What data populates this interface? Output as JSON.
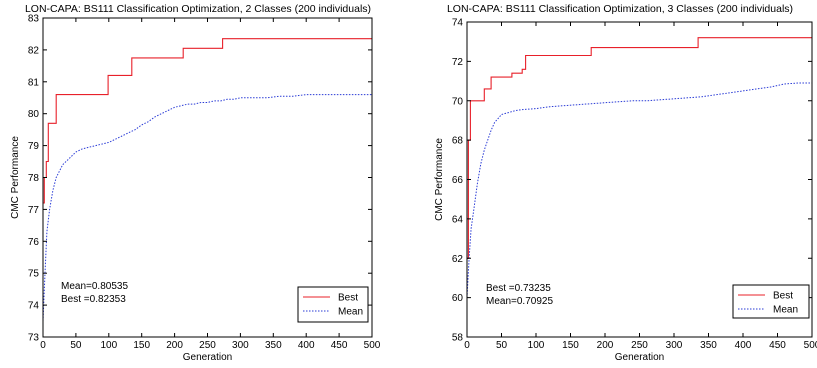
{
  "chart_data": [
    {
      "type": "line",
      "title": "LON-CAPA: BS111 Classification Optimization, 2 Classes (200 individuals)",
      "xlabel": "Generation",
      "ylabel": "CMC Performance",
      "xlim": [
        0,
        500
      ],
      "ylim": [
        73,
        83
      ],
      "xticks": [
        0,
        50,
        100,
        150,
        200,
        250,
        300,
        350,
        400,
        450,
        500
      ],
      "yticks": [
        73,
        74,
        75,
        76,
        77,
        78,
        79,
        80,
        81,
        82,
        83
      ],
      "grid": false,
      "legend_position": "bottom-right",
      "annotation_lines": [
        "Mean=0.80535",
        "Best =0.82353"
      ],
      "series": [
        {
          "name": "Best",
          "style": "solid",
          "color": "#e8202a",
          "step": true,
          "x": [
            0,
            2,
            5,
            8,
            11,
            20,
            96,
            99,
            132,
            135,
            210,
            213,
            270,
            273,
            500
          ],
          "y": [
            77.2,
            78.0,
            78.5,
            79.7,
            79.7,
            80.6,
            80.6,
            81.2,
            81.2,
            81.75,
            81.75,
            82.05,
            82.05,
            82.35,
            82.35
          ]
        },
        {
          "name": "Mean",
          "style": "dotted",
          "color": "#2a3bd6",
          "step": false,
          "x": [
            0,
            3,
            6,
            10,
            15,
            20,
            30,
            40,
            50,
            60,
            70,
            80,
            90,
            100,
            110,
            120,
            130,
            140,
            150,
            160,
            170,
            180,
            190,
            200,
            210,
            220,
            230,
            240,
            250,
            260,
            270,
            280,
            290,
            300,
            320,
            340,
            360,
            380,
            400,
            420,
            440,
            460,
            480,
            500
          ],
          "y": [
            73.5,
            75.0,
            76.3,
            77.0,
            77.6,
            78.0,
            78.4,
            78.6,
            78.8,
            78.9,
            78.95,
            79.0,
            79.05,
            79.1,
            79.2,
            79.3,
            79.4,
            79.5,
            79.65,
            79.75,
            79.9,
            80.0,
            80.1,
            80.2,
            80.25,
            80.3,
            80.3,
            80.35,
            80.35,
            80.4,
            80.4,
            80.45,
            80.45,
            80.5,
            80.5,
            80.5,
            80.55,
            80.55,
            80.6,
            80.6,
            80.6,
            80.6,
            80.6,
            80.6
          ]
        }
      ]
    },
    {
      "type": "line",
      "title": "LON-CAPA: BS111 Classification Optimization, 3 Classes (200 individuals)",
      "xlabel": "Generation",
      "ylabel": "CMC Performance",
      "xlim": [
        0,
        500
      ],
      "ylim": [
        58,
        74
      ],
      "xticks": [
        0,
        50,
        100,
        150,
        200,
        250,
        300,
        350,
        400,
        450,
        500
      ],
      "yticks": [
        58,
        60,
        62,
        64,
        66,
        68,
        70,
        72,
        74
      ],
      "grid": false,
      "legend_position": "bottom-right",
      "annotation_lines": [
        "Best =0.73235",
        "Mean=0.70925"
      ],
      "series": [
        {
          "name": "Best",
          "style": "solid",
          "color": "#e8202a",
          "step": true,
          "x": [
            0,
            2,
            5,
            20,
            25,
            30,
            35,
            60,
            65,
            70,
            80,
            85,
            175,
            180,
            330,
            335,
            500
          ],
          "y": [
            62,
            68,
            70,
            70,
            70.6,
            70.6,
            71.2,
            71.2,
            71.4,
            71.4,
            71.6,
            72.3,
            72.3,
            72.7,
            72.7,
            73.2,
            73.2
          ]
        },
        {
          "name": "Mean",
          "style": "dotted",
          "color": "#2a3bd6",
          "step": false,
          "x": [
            0,
            3,
            6,
            10,
            15,
            20,
            25,
            30,
            35,
            40,
            45,
            50,
            60,
            70,
            80,
            100,
            120,
            140,
            160,
            180,
            200,
            220,
            240,
            260,
            280,
            300,
            320,
            340,
            360,
            380,
            400,
            420,
            440,
            460,
            480,
            500
          ],
          "y": [
            60.0,
            62.0,
            63.5,
            64.5,
            65.8,
            66.8,
            67.5,
            68.0,
            68.5,
            68.9,
            69.1,
            69.3,
            69.4,
            69.5,
            69.55,
            69.6,
            69.7,
            69.75,
            69.8,
            69.85,
            69.9,
            69.95,
            70.0,
            70.0,
            70.05,
            70.1,
            70.15,
            70.2,
            70.3,
            70.4,
            70.5,
            70.6,
            70.7,
            70.85,
            70.9,
            70.9
          ]
        }
      ]
    }
  ]
}
